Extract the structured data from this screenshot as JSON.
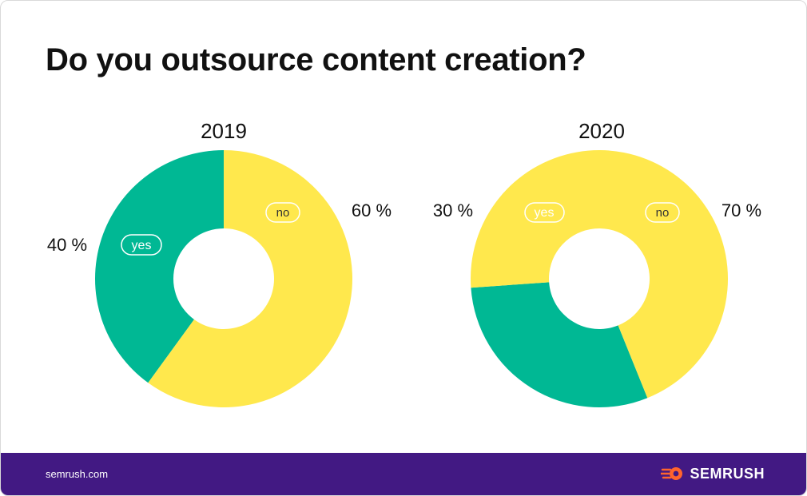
{
  "title": "Do you outsource content creation?",
  "colors": {
    "yes": "#00b894",
    "no": "#ffe84d",
    "footer": "#421983",
    "brand_accent": "#ff642d"
  },
  "chart_data": [
    {
      "type": "pie",
      "title": "2019",
      "slices": [
        {
          "key": "yes",
          "tag": "yes",
          "value": 40,
          "label": "40 %"
        },
        {
          "key": "no",
          "tag": "no",
          "value": 60,
          "label": "60 %"
        }
      ]
    },
    {
      "type": "pie",
      "title": "2020",
      "slices": [
        {
          "key": "yes",
          "tag": "yes",
          "value": 30,
          "label": "30 %"
        },
        {
          "key": "no",
          "tag": "no",
          "value": 70,
          "label": "70 %"
        }
      ]
    }
  ],
  "footer": {
    "site": "semrush.com",
    "brand": "SEMRUSH",
    "brand_icon": "semrush-flame-icon"
  }
}
